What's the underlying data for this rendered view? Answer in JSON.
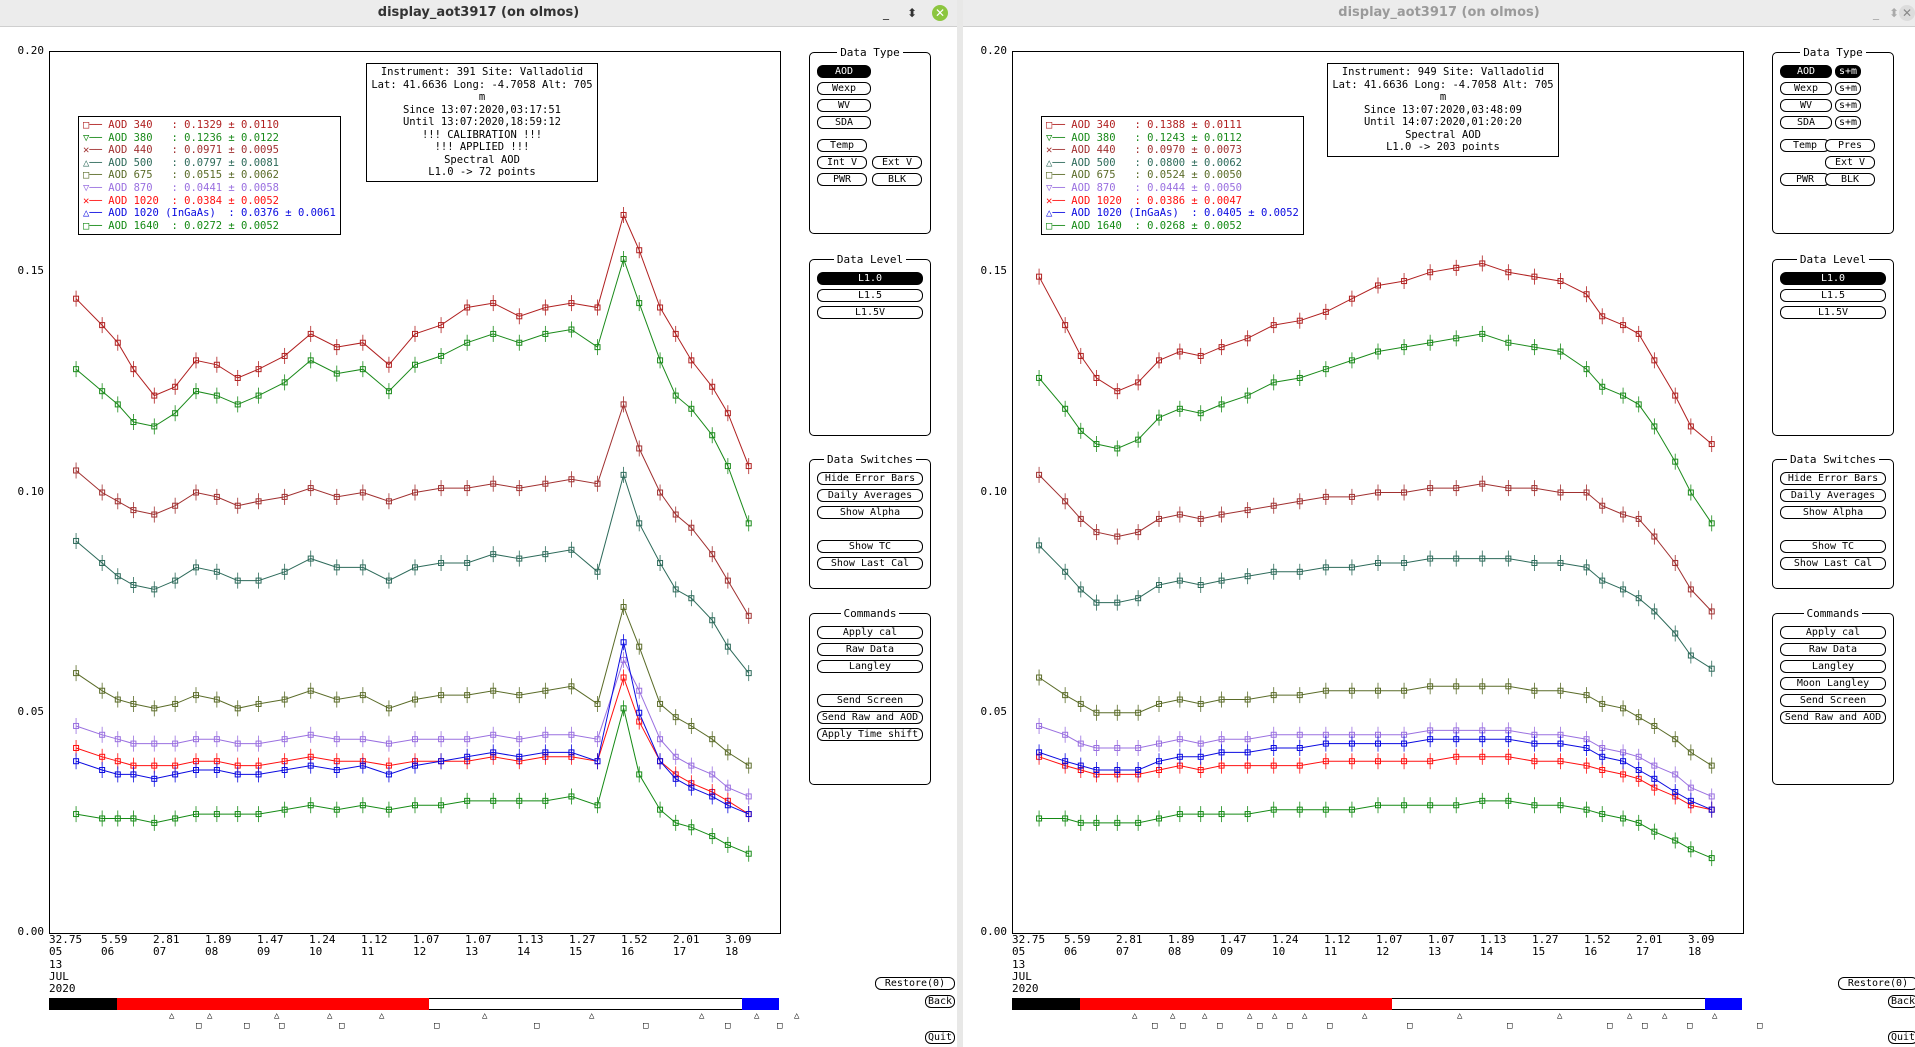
{
  "windows": [
    {
      "title": "display_aot3917 (on olmos)",
      "active": true,
      "info": [
        "Instrument: 391 Site: Valladolid",
        "Lat: 41.6636 Long: -4.7058 Alt: 705 m",
        "Since 13:07:2020,03:17:51",
        "Until 13:07:2020,18:59:12",
        "!!! CALIBRATION !!!",
        "!!!   APPLIED  !!!",
        "Spectral AOD",
        "L1.0 -> 72 points"
      ],
      "legend": [
        {
          "label": "AOD 340   : 0.1329 ± 0.0110",
          "color": "#b02020",
          "marker": "□"
        },
        {
          "label": "AOD 380   : 0.1236 ± 0.0122",
          "color": "#1a8a1a",
          "marker": "▽"
        },
        {
          "label": "AOD 440   : 0.0971 ± 0.0095",
          "color": "#a03030",
          "marker": "✕"
        },
        {
          "label": "AOD 500   : 0.0797 ± 0.0081",
          "color": "#2d6a5a",
          "marker": "△"
        },
        {
          "label": "AOD 675   : 0.0515 ± 0.0062",
          "color": "#5a6b28",
          "marker": "□"
        },
        {
          "label": "AOD 870   : 0.0441 ± 0.0058",
          "color": "#9a70e0",
          "marker": "▽"
        },
        {
          "label": "AOD 1020  : 0.0384 ± 0.0052",
          "color": "#ff1010",
          "marker": "✕"
        },
        {
          "label": "AOD 1020 (InGaAs)  : 0.0376 ± 0.0061",
          "color": "#0a0ae0",
          "marker": "△"
        },
        {
          "label": "AOD 1640  : 0.0272 ± 0.0052",
          "color": "#158a15",
          "marker": "□"
        }
      ],
      "commands": [
        "Apply cal",
        "Raw Data",
        "Langley",
        "",
        "Send Screen",
        "Send Raw and AOD",
        "Apply Time shift"
      ],
      "data_type_extra": false
    },
    {
      "title": "display_aot3917 (on olmos)",
      "active": false,
      "info": [
        "Instrument: 949 Site: Valladolid",
        "Lat: 41.6636 Long: -4.7058 Alt: 705 m",
        "Since 13:07:2020,03:48:09",
        "Until 14:07:2020,01:20:20",
        "Spectral AOD",
        "L1.0 -> 203 points"
      ],
      "legend": [
        {
          "label": "AOD 340   : 0.1388 ± 0.0111",
          "color": "#b02020",
          "marker": "□"
        },
        {
          "label": "AOD 380   : 0.1243 ± 0.0112",
          "color": "#1a8a1a",
          "marker": "▽"
        },
        {
          "label": "AOD 440   : 0.0970 ± 0.0073",
          "color": "#a03030",
          "marker": "✕"
        },
        {
          "label": "AOD 500   : 0.0800 ± 0.0062",
          "color": "#2d6a5a",
          "marker": "△"
        },
        {
          "label": "AOD 675   : 0.0524 ± 0.0050",
          "color": "#5a6b28",
          "marker": "□"
        },
        {
          "label": "AOD 870   : 0.0444 ± 0.0050",
          "color": "#9a70e0",
          "marker": "▽"
        },
        {
          "label": "AOD 1020  : 0.0386 ± 0.0047",
          "color": "#ff1010",
          "marker": "✕"
        },
        {
          "label": "AOD 1020 (InGaAs)  : 0.0405 ± 0.0052",
          "color": "#0a0ae0",
          "marker": "△"
        },
        {
          "label": "AOD 1640  : 0.0268 ± 0.0052",
          "color": "#158a15",
          "marker": "□"
        }
      ],
      "commands": [
        "Apply cal",
        "Raw Data",
        "Langley",
        "Moon Langley",
        "Send Screen",
        "Send Raw and AOD"
      ],
      "data_type_extra": true
    }
  ],
  "y_ticks": [
    "0.20",
    "0.15",
    "0.10",
    "0.05",
    "0.00"
  ],
  "x_ticks": [
    {
      "top": "32.75",
      "bottom": "05"
    },
    {
      "top": "5.59",
      "bottom": "06"
    },
    {
      "top": "2.81",
      "bottom": "07"
    },
    {
      "top": "1.89",
      "bottom": "08"
    },
    {
      "top": "1.47",
      "bottom": "09"
    },
    {
      "top": "1.24",
      "bottom": "10"
    },
    {
      "top": "1.12",
      "bottom": "11"
    },
    {
      "top": "1.07",
      "bottom": "12"
    },
    {
      "top": "1.07",
      "bottom": "13"
    },
    {
      "top": "1.13",
      "bottom": "14"
    },
    {
      "top": "1.27",
      "bottom": "15"
    },
    {
      "top": "1.52",
      "bottom": "16"
    },
    {
      "top": "2.01",
      "bottom": "17"
    },
    {
      "top": "3.09",
      "bottom": "18"
    }
  ],
  "date": {
    "day": "13",
    "month": "JUL",
    "year": "2020"
  },
  "panels": {
    "data_type": {
      "title": "Data Type",
      "buttons": [
        "AOD",
        "Wexp",
        "WV",
        "SDA"
      ],
      "extra": [
        "Temp",
        "Int V",
        "Ext V",
        "PWR",
        "BLK",
        "Pres",
        "s+m"
      ]
    },
    "data_level": {
      "title": "Data Level",
      "buttons": [
        "L1.0",
        "L1.5",
        "L1.5V"
      ]
    },
    "data_switches": {
      "title": "Data Switches",
      "buttons": [
        "Hide Error Bars",
        "Daily Averages",
        "Show Alpha",
        "Show TC",
        "Show Last Cal"
      ]
    },
    "commands": {
      "title": "Commands"
    }
  },
  "bottom_buttons": {
    "restore": "Restore(0)",
    "back": "Back",
    "quit": "Quit"
  },
  "chart_data": [
    {
      "type": "line",
      "xlabel": "",
      "ylabel": "",
      "ylim": [
        0,
        0.2
      ],
      "x": [
        5.5,
        6,
        6.3,
        6.6,
        7,
        7.4,
        7.8,
        8.2,
        8.6,
        9,
        9.5,
        10,
        10.5,
        11,
        11.5,
        12,
        12.5,
        13,
        13.5,
        14,
        14.5,
        15,
        15.5,
        16,
        16.3,
        16.7,
        17,
        17.3,
        17.7,
        18,
        18.4
      ],
      "series": [
        {
          "name": "AOD 340",
          "values": [
            0.144,
            0.138,
            0.134,
            0.128,
            0.122,
            0.124,
            0.13,
            0.129,
            0.126,
            0.128,
            0.131,
            0.136,
            0.133,
            0.134,
            0.129,
            0.136,
            0.138,
            0.142,
            0.143,
            0.14,
            0.142,
            0.143,
            0.142,
            0.163,
            0.155,
            0.142,
            0.136,
            0.13,
            0.124,
            0.118,
            0.106
          ]
        },
        {
          "name": "AOD 380",
          "values": [
            0.128,
            0.123,
            0.12,
            0.116,
            0.115,
            0.118,
            0.123,
            0.122,
            0.12,
            0.122,
            0.125,
            0.13,
            0.127,
            0.128,
            0.123,
            0.129,
            0.131,
            0.134,
            0.136,
            0.134,
            0.136,
            0.137,
            0.133,
            0.153,
            0.143,
            0.13,
            0.122,
            0.119,
            0.113,
            0.106,
            0.093
          ]
        },
        {
          "name": "AOD 440",
          "values": [
            0.105,
            0.1,
            0.098,
            0.096,
            0.095,
            0.097,
            0.1,
            0.099,
            0.097,
            0.098,
            0.099,
            0.101,
            0.099,
            0.1,
            0.098,
            0.1,
            0.101,
            0.101,
            0.102,
            0.101,
            0.102,
            0.103,
            0.102,
            0.12,
            0.11,
            0.1,
            0.095,
            0.092,
            0.086,
            0.08,
            0.072
          ]
        },
        {
          "name": "AOD 500",
          "values": [
            0.089,
            0.084,
            0.081,
            0.079,
            0.078,
            0.08,
            0.083,
            0.082,
            0.08,
            0.08,
            0.082,
            0.085,
            0.083,
            0.083,
            0.08,
            0.083,
            0.084,
            0.084,
            0.086,
            0.085,
            0.086,
            0.087,
            0.082,
            0.104,
            0.093,
            0.084,
            0.078,
            0.076,
            0.071,
            0.065,
            0.059
          ]
        },
        {
          "name": "AOD 675",
          "values": [
            0.059,
            0.055,
            0.053,
            0.052,
            0.051,
            0.052,
            0.054,
            0.053,
            0.051,
            0.052,
            0.053,
            0.055,
            0.053,
            0.054,
            0.051,
            0.053,
            0.054,
            0.054,
            0.055,
            0.054,
            0.055,
            0.056,
            0.052,
            0.074,
            0.065,
            0.052,
            0.049,
            0.047,
            0.044,
            0.041,
            0.038
          ]
        },
        {
          "name": "AOD 870",
          "values": [
            0.047,
            0.045,
            0.044,
            0.043,
            0.043,
            0.043,
            0.044,
            0.044,
            0.043,
            0.043,
            0.044,
            0.045,
            0.044,
            0.044,
            0.043,
            0.044,
            0.044,
            0.044,
            0.045,
            0.044,
            0.045,
            0.045,
            0.044,
            0.062,
            0.055,
            0.044,
            0.04,
            0.038,
            0.036,
            0.033,
            0.031
          ]
        },
        {
          "name": "AOD 1020",
          "values": [
            0.042,
            0.04,
            0.039,
            0.038,
            0.038,
            0.038,
            0.039,
            0.039,
            0.038,
            0.038,
            0.039,
            0.04,
            0.039,
            0.039,
            0.038,
            0.039,
            0.039,
            0.039,
            0.04,
            0.039,
            0.04,
            0.04,
            0.039,
            0.058,
            0.048,
            0.039,
            0.036,
            0.034,
            0.032,
            0.03,
            0.027
          ]
        },
        {
          "name": "AOD 1020 (InGaAs)",
          "values": [
            0.039,
            0.037,
            0.036,
            0.036,
            0.035,
            0.036,
            0.037,
            0.037,
            0.036,
            0.036,
            0.037,
            0.038,
            0.037,
            0.038,
            0.036,
            0.038,
            0.039,
            0.04,
            0.041,
            0.04,
            0.041,
            0.041,
            0.039,
            0.066,
            0.05,
            0.039,
            0.035,
            0.033,
            0.031,
            0.029,
            0.027
          ]
        },
        {
          "name": "AOD 1640",
          "values": [
            0.027,
            0.026,
            0.026,
            0.026,
            0.025,
            0.026,
            0.027,
            0.027,
            0.027,
            0.027,
            0.028,
            0.029,
            0.028,
            0.029,
            0.028,
            0.029,
            0.029,
            0.03,
            0.03,
            0.03,
            0.03,
            0.031,
            0.029,
            0.051,
            0.036,
            0.028,
            0.025,
            0.024,
            0.022,
            0.02,
            0.018
          ]
        }
      ]
    },
    {
      "type": "line",
      "xlabel": "",
      "ylabel": "",
      "ylim": [
        0,
        0.2
      ],
      "x": [
        5.5,
        6,
        6.3,
        6.6,
        7,
        7.4,
        7.8,
        8.2,
        8.6,
        9,
        9.5,
        10,
        10.5,
        11,
        11.5,
        12,
        12.5,
        13,
        13.5,
        14,
        14.5,
        15,
        15.5,
        16,
        16.3,
        16.7,
        17,
        17.3,
        17.7,
        18,
        18.4
      ],
      "series": [
        {
          "name": "AOD 340",
          "values": [
            0.149,
            0.138,
            0.131,
            0.126,
            0.123,
            0.125,
            0.13,
            0.132,
            0.131,
            0.133,
            0.135,
            0.138,
            0.139,
            0.141,
            0.144,
            0.147,
            0.148,
            0.15,
            0.151,
            0.152,
            0.15,
            0.149,
            0.148,
            0.145,
            0.14,
            0.138,
            0.136,
            0.13,
            0.122,
            0.115,
            0.111
          ]
        },
        {
          "name": "AOD 380",
          "values": [
            0.126,
            0.119,
            0.114,
            0.111,
            0.11,
            0.112,
            0.117,
            0.119,
            0.118,
            0.12,
            0.122,
            0.125,
            0.126,
            0.128,
            0.13,
            0.132,
            0.133,
            0.134,
            0.135,
            0.136,
            0.134,
            0.133,
            0.132,
            0.128,
            0.124,
            0.122,
            0.12,
            0.115,
            0.107,
            0.1,
            0.093
          ]
        },
        {
          "name": "AOD 440",
          "values": [
            0.104,
            0.098,
            0.094,
            0.091,
            0.09,
            0.091,
            0.094,
            0.095,
            0.094,
            0.095,
            0.096,
            0.097,
            0.098,
            0.099,
            0.099,
            0.1,
            0.1,
            0.101,
            0.101,
            0.102,
            0.101,
            0.101,
            0.1,
            0.1,
            0.097,
            0.095,
            0.094,
            0.09,
            0.084,
            0.078,
            0.073
          ]
        },
        {
          "name": "AOD 500",
          "values": [
            0.088,
            0.082,
            0.078,
            0.075,
            0.075,
            0.076,
            0.079,
            0.08,
            0.079,
            0.08,
            0.081,
            0.082,
            0.082,
            0.083,
            0.083,
            0.084,
            0.084,
            0.085,
            0.085,
            0.085,
            0.085,
            0.084,
            0.084,
            0.083,
            0.08,
            0.078,
            0.076,
            0.073,
            0.068,
            0.063,
            0.06
          ]
        },
        {
          "name": "AOD 675",
          "values": [
            0.058,
            0.054,
            0.052,
            0.05,
            0.05,
            0.05,
            0.052,
            0.053,
            0.052,
            0.053,
            0.053,
            0.054,
            0.054,
            0.055,
            0.055,
            0.055,
            0.055,
            0.056,
            0.056,
            0.056,
            0.056,
            0.055,
            0.055,
            0.054,
            0.052,
            0.051,
            0.049,
            0.047,
            0.044,
            0.041,
            0.038
          ]
        },
        {
          "name": "AOD 870",
          "values": [
            0.047,
            0.045,
            0.043,
            0.042,
            0.042,
            0.042,
            0.043,
            0.044,
            0.043,
            0.044,
            0.044,
            0.045,
            0.045,
            0.045,
            0.045,
            0.045,
            0.045,
            0.046,
            0.046,
            0.046,
            0.046,
            0.045,
            0.045,
            0.044,
            0.042,
            0.041,
            0.04,
            0.038,
            0.036,
            0.033,
            0.031
          ]
        },
        {
          "name": "AOD 1020",
          "values": [
            0.04,
            0.038,
            0.037,
            0.036,
            0.036,
            0.036,
            0.037,
            0.038,
            0.037,
            0.038,
            0.038,
            0.038,
            0.038,
            0.039,
            0.039,
            0.039,
            0.039,
            0.039,
            0.04,
            0.04,
            0.04,
            0.039,
            0.039,
            0.038,
            0.037,
            0.036,
            0.035,
            0.033,
            0.031,
            0.029,
            0.028
          ]
        },
        {
          "name": "AOD 1020 (InGaAs)",
          "values": [
            0.041,
            0.039,
            0.038,
            0.037,
            0.037,
            0.037,
            0.039,
            0.04,
            0.04,
            0.041,
            0.041,
            0.042,
            0.042,
            0.043,
            0.043,
            0.043,
            0.043,
            0.044,
            0.044,
            0.044,
            0.044,
            0.043,
            0.043,
            0.042,
            0.04,
            0.039,
            0.037,
            0.035,
            0.032,
            0.03,
            0.028
          ]
        },
        {
          "name": "AOD 1640",
          "values": [
            0.026,
            0.026,
            0.025,
            0.025,
            0.025,
            0.025,
            0.026,
            0.027,
            0.027,
            0.027,
            0.027,
            0.028,
            0.028,
            0.028,
            0.028,
            0.029,
            0.029,
            0.029,
            0.029,
            0.03,
            0.03,
            0.029,
            0.029,
            0.028,
            0.027,
            0.026,
            0.025,
            0.023,
            0.021,
            0.019,
            0.017
          ]
        }
      ]
    }
  ]
}
